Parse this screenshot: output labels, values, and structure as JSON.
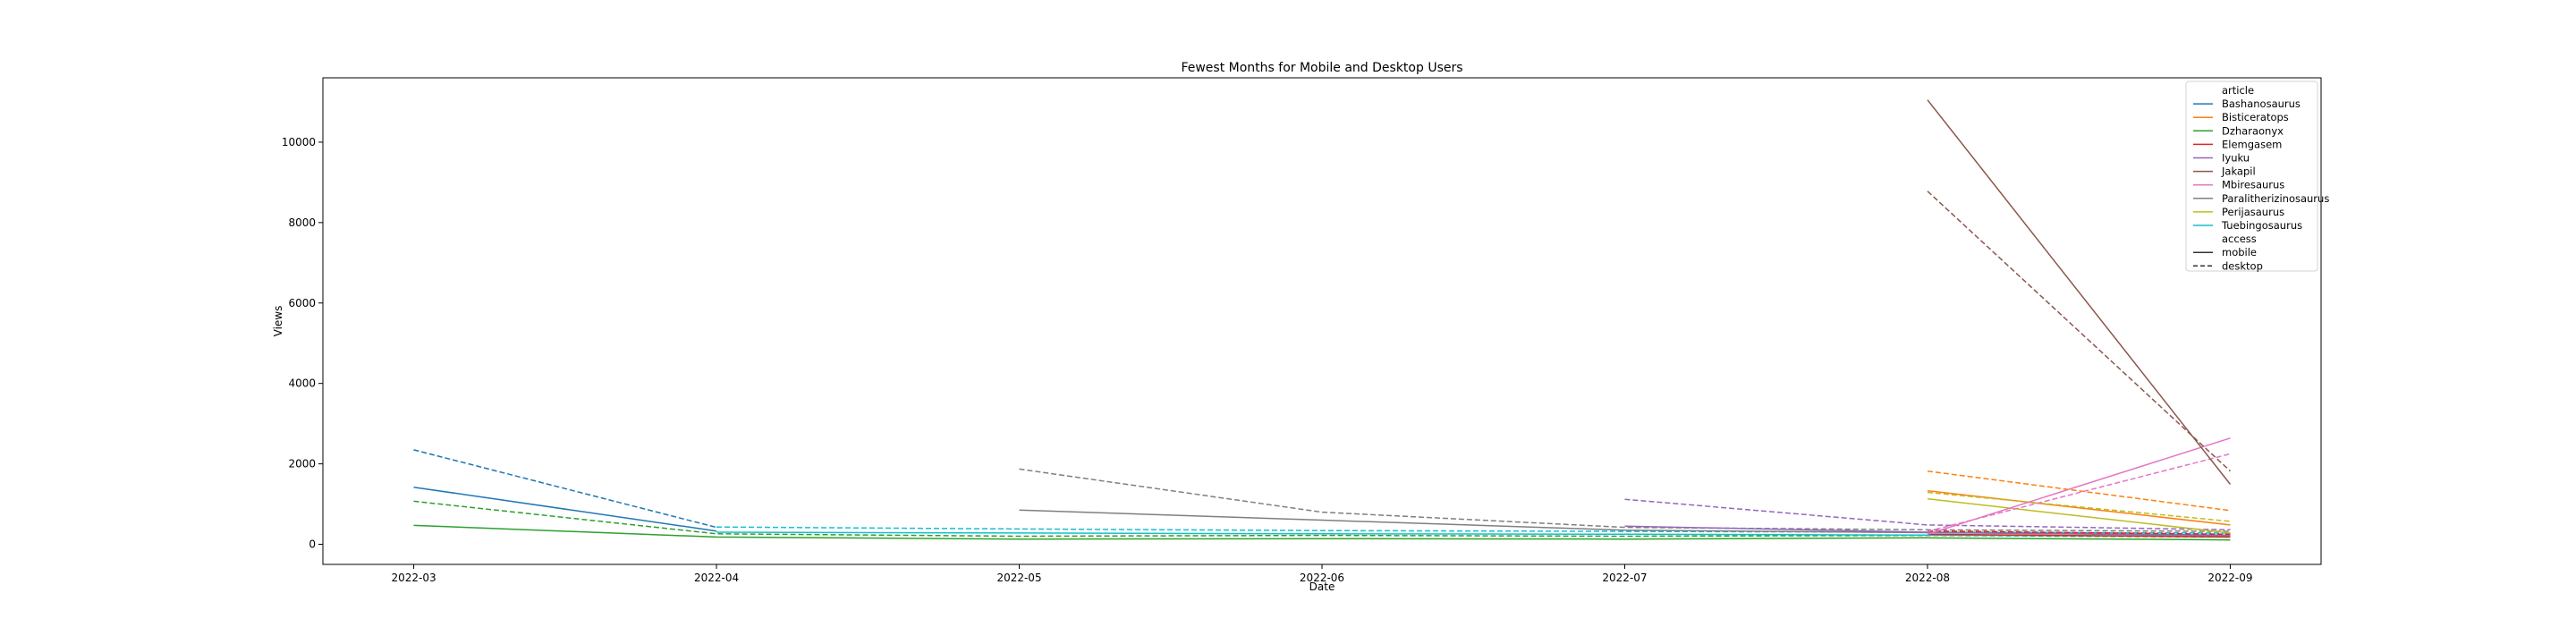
{
  "chart_data": {
    "type": "line",
    "title": "Fewest Months for Mobile and Desktop Users",
    "xlabel": "Date",
    "ylabel": "Views",
    "x_ticks": [
      "2022-03",
      "2022-04",
      "2022-05",
      "2022-06",
      "2022-07",
      "2022-08",
      "2022-09"
    ],
    "y_ticks": [
      0,
      2000,
      4000,
      6000,
      8000,
      10000
    ],
    "xlim": [
      -0.3,
      6.3
    ],
    "ylim": [
      -500,
      11600
    ],
    "grid": false,
    "legend_placement": "top-right",
    "legend": {
      "article_header": "article",
      "access_header": "access",
      "articles": [
        {
          "name": "Bashanosaurus",
          "color": "#1f77b4"
        },
        {
          "name": "Bisticeratops",
          "color": "#ff7f0e"
        },
        {
          "name": "Dzharaonyx",
          "color": "#2ca02c"
        },
        {
          "name": "Elemgasem",
          "color": "#d62728"
        },
        {
          "name": "Iyuku",
          "color": "#9467bd"
        },
        {
          "name": "Jakapil",
          "color": "#8c564b"
        },
        {
          "name": "Mbiresaurus",
          "color": "#e377c2"
        },
        {
          "name": "Paralitherizinosaurus",
          "color": "#7f7f7f"
        },
        {
          "name": "Perijasaurus",
          "color": "#bcbd22"
        },
        {
          "name": "Tuebingosaurus",
          "color": "#17becf"
        }
      ],
      "access": [
        {
          "name": "mobile",
          "style": "solid",
          "color": "#333333"
        },
        {
          "name": "desktop",
          "style": "dashed",
          "color": "#333333"
        }
      ]
    },
    "series": [
      {
        "article": "Bashanosaurus",
        "access": "mobile",
        "color": "#1f77b4",
        "x": [
          "2022-03",
          "2022-04"
        ],
        "values": [
          1420,
          330
        ]
      },
      {
        "article": "Bashanosaurus",
        "access": "desktop",
        "color": "#1f77b4",
        "x": [
          "2022-03",
          "2022-04"
        ],
        "values": [
          2350,
          420
        ]
      },
      {
        "article": "Dzharaonyx",
        "access": "mobile",
        "color": "#2ca02c",
        "x": [
          "2022-03",
          "2022-04",
          "2022-05",
          "2022-06",
          "2022-07",
          "2022-08",
          "2022-09"
        ],
        "values": [
          470,
          180,
          130,
          140,
          130,
          160,
          110
        ]
      },
      {
        "article": "Dzharaonyx",
        "access": "desktop",
        "color": "#2ca02c",
        "x": [
          "2022-03",
          "2022-04",
          "2022-05",
          "2022-06",
          "2022-07",
          "2022-08",
          "2022-09"
        ],
        "values": [
          1070,
          260,
          200,
          220,
          200,
          220,
          180
        ]
      },
      {
        "article": "Tuebingosaurus",
        "access": "mobile",
        "color": "#17becf",
        "x": [
          "2022-04",
          "2022-05",
          "2022-06",
          "2022-07",
          "2022-08",
          "2022-09"
        ],
        "values": [
          300,
          280,
          260,
          250,
          230,
          200
        ]
      },
      {
        "article": "Tuebingosaurus",
        "access": "desktop",
        "color": "#17becf",
        "x": [
          "2022-04",
          "2022-05",
          "2022-06",
          "2022-07",
          "2022-08",
          "2022-09"
        ],
        "values": [
          430,
          380,
          340,
          320,
          300,
          280
        ]
      },
      {
        "article": "Paralitherizinosaurus",
        "access": "mobile",
        "color": "#7f7f7f",
        "x": [
          "2022-05",
          "2022-06",
          "2022-07",
          "2022-08",
          "2022-09"
        ],
        "values": [
          850,
          600,
          350,
          290,
          220
        ]
      },
      {
        "article": "Paralitherizinosaurus",
        "access": "desktop",
        "color": "#7f7f7f",
        "x": [
          "2022-05",
          "2022-06",
          "2022-07",
          "2022-08",
          "2022-09"
        ],
        "values": [
          1870,
          800,
          420,
          360,
          320
        ]
      },
      {
        "article": "Iyuku",
        "access": "mobile",
        "color": "#9467bd",
        "x": [
          "2022-07",
          "2022-08",
          "2022-09"
        ],
        "values": [
          450,
          300,
          230
        ]
      },
      {
        "article": "Iyuku",
        "access": "desktop",
        "color": "#9467bd",
        "x": [
          "2022-07",
          "2022-08",
          "2022-09"
        ],
        "values": [
          1120,
          480,
          360
        ]
      },
      {
        "article": "Bisticeratops",
        "access": "mobile",
        "color": "#ff7f0e",
        "x": [
          "2022-08",
          "2022-09"
        ],
        "values": [
          1330,
          480
        ]
      },
      {
        "article": "Bisticeratops",
        "access": "desktop",
        "color": "#ff7f0e",
        "x": [
          "2022-08",
          "2022-09"
        ],
        "values": [
          1820,
          840
        ]
      },
      {
        "article": "Perijasaurus",
        "access": "mobile",
        "color": "#bcbd22",
        "x": [
          "2022-08",
          "2022-09"
        ],
        "values": [
          1130,
          280
        ]
      },
      {
        "article": "Perijasaurus",
        "access": "desktop",
        "color": "#bcbd22",
        "x": [
          "2022-08",
          "2022-09"
        ],
        "values": [
          1290,
          570
        ]
      },
      {
        "article": "Elemgasem",
        "access": "mobile",
        "color": "#d62728",
        "x": [
          "2022-08",
          "2022-09"
        ],
        "values": [
          250,
          180
        ]
      },
      {
        "article": "Elemgasem",
        "access": "desktop",
        "color": "#d62728",
        "x": [
          "2022-08",
          "2022-09"
        ],
        "values": [
          330,
          250
        ]
      },
      {
        "article": "Mbiresaurus",
        "access": "mobile",
        "color": "#e377c2",
        "x": [
          "2022-08",
          "2022-09"
        ],
        "values": [
          250,
          2640
        ]
      },
      {
        "article": "Mbiresaurus",
        "access": "desktop",
        "color": "#e377c2",
        "x": [
          "2022-08",
          "2022-09"
        ],
        "values": [
          320,
          2250
        ]
      },
      {
        "article": "Jakapil",
        "access": "mobile",
        "color": "#8c564b",
        "x": [
          "2022-08",
          "2022-09"
        ],
        "values": [
          11050,
          1490
        ]
      },
      {
        "article": "Jakapil",
        "access": "desktop",
        "color": "#8c564b",
        "x": [
          "2022-08",
          "2022-09"
        ],
        "values": [
          8780,
          1820
        ]
      }
    ]
  }
}
